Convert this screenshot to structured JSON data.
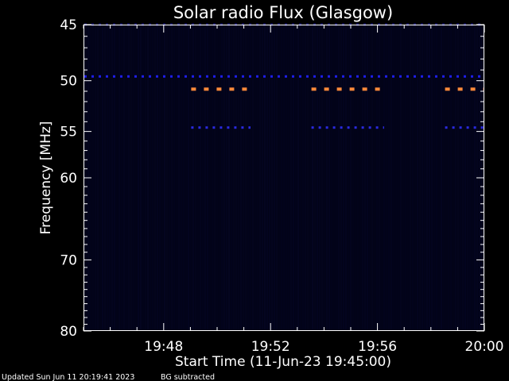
{
  "chart_data": {
    "type": "heatmap",
    "title": "Solar radio Flux (Glasgow)",
    "xlabel": "Start Time (11-Jun-23 19:45:00)",
    "ylabel": "Frequency [MHz]",
    "xlim": [
      "19:45:00",
      "20:00:00"
    ],
    "ylim": [
      45,
      80
    ],
    "y_reversed": true,
    "y_scale": "log",
    "x_ticks": [
      {
        "time": "19:48:00",
        "label": "19:48"
      },
      {
        "time": "19:52:00",
        "label": "19:52"
      },
      {
        "time": "19:56:00",
        "label": "19:56"
      },
      {
        "time": "20:00:00",
        "label": "20:00"
      }
    ],
    "y_ticks": [
      {
        "value": 45,
        "label": "45"
      },
      {
        "value": 50,
        "label": "50"
      },
      {
        "value": 55,
        "label": "55"
      },
      {
        "value": 60,
        "label": "60"
      },
      {
        "value": 70,
        "label": "70"
      },
      {
        "value": 80,
        "label": "80"
      }
    ],
    "background_color": "#020318",
    "emission_bands": [
      {
        "freq": 45.0,
        "start": "19:45:00",
        "end": "20:00:00",
        "level": "low",
        "color": "#1c1c7a"
      },
      {
        "freq": 49.6,
        "start": "19:45:00",
        "end": "20:00:00",
        "level": "medium",
        "color": "#1e1ee8"
      },
      {
        "freq": 50.8,
        "start": "19:49:00",
        "end": "19:51:15",
        "level": "high",
        "color": "#ff8a3a"
      },
      {
        "freq": 50.8,
        "start": "19:53:30",
        "end": "19:56:15",
        "level": "high",
        "color": "#ff8a3a"
      },
      {
        "freq": 50.8,
        "start": "19:58:30",
        "end": "20:00:00",
        "level": "high",
        "color": "#ff8a3a"
      },
      {
        "freq": 54.6,
        "start": "19:49:00",
        "end": "19:51:15",
        "level": "medium",
        "color": "#2a2ae0"
      },
      {
        "freq": 54.6,
        "start": "19:53:30",
        "end": "19:56:15",
        "level": "medium",
        "color": "#2a2ae0"
      },
      {
        "freq": 54.6,
        "start": "19:58:30",
        "end": "20:00:00",
        "level": "medium",
        "color": "#2a2ae0"
      }
    ]
  },
  "footer": {
    "updated": "Updated Sun Jun 11 20:19:41 2023",
    "note": "BG subtracted"
  }
}
